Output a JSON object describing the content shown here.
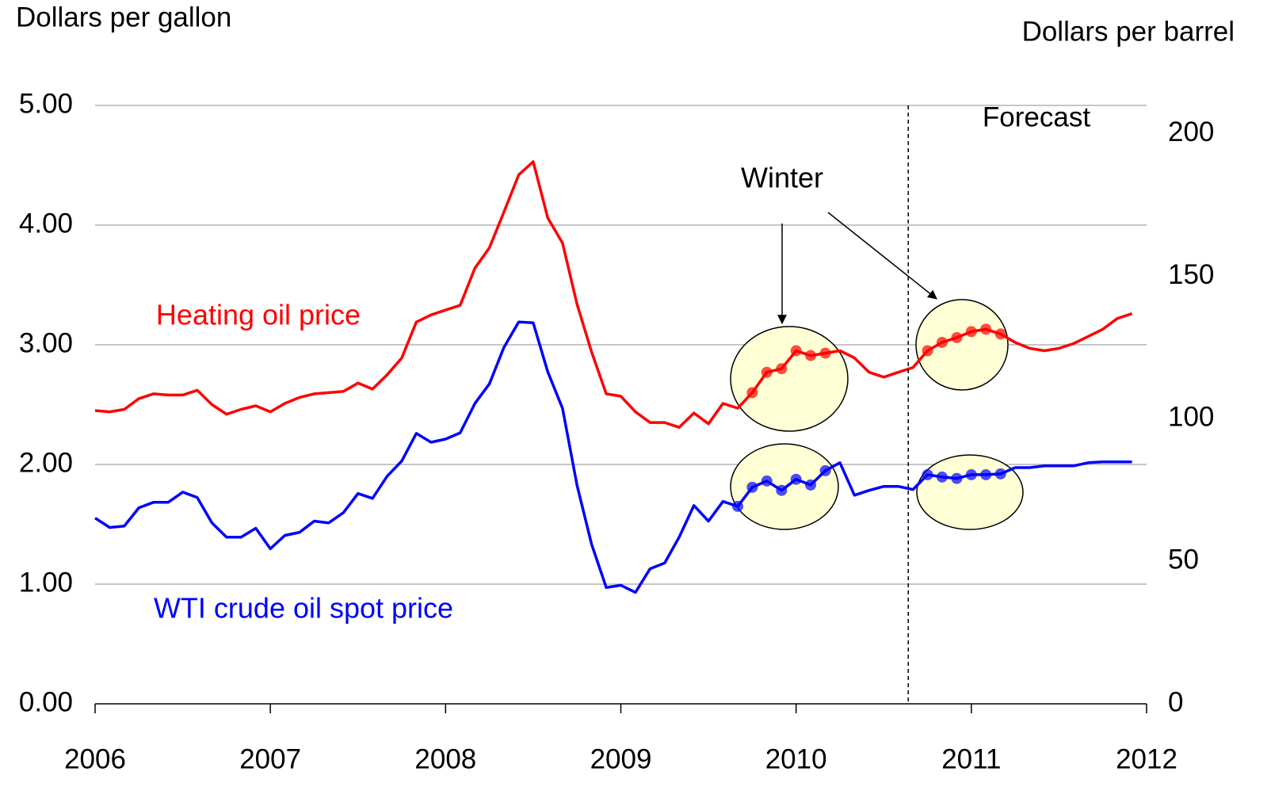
{
  "chart_data": {
    "type": "line",
    "ylabel": "Dollars per gallon",
    "y2label": "Dollars per barrel",
    "annotations": {
      "forecast": "Forecast",
      "winter": "Winter"
    },
    "forecast_start": 2010.64,
    "x": [
      2006,
      2006.083,
      2006.167,
      2006.25,
      2006.333,
      2006.417,
      2006.5,
      2006.583,
      2006.667,
      2006.75,
      2006.833,
      2006.917,
      2007,
      2007.083,
      2007.167,
      2007.25,
      2007.333,
      2007.417,
      2007.5,
      2007.583,
      2007.667,
      2007.75,
      2007.833,
      2007.917,
      2008,
      2008.083,
      2008.167,
      2008.25,
      2008.333,
      2008.417,
      2008.5,
      2008.583,
      2008.667,
      2008.75,
      2008.833,
      2008.917,
      2009,
      2009.083,
      2009.167,
      2009.25,
      2009.333,
      2009.417,
      2009.5,
      2009.583,
      2009.667,
      2009.75,
      2009.833,
      2009.917,
      2010,
      2010.083,
      2010.167,
      2010.25,
      2010.333,
      2010.417,
      2010.5,
      2010.583,
      2010.667,
      2010.75,
      2010.833,
      2010.917,
      2011,
      2011.083,
      2011.167,
      2011.25,
      2011.333,
      2011.417,
      2011.5,
      2011.583,
      2011.667,
      2011.75,
      2011.833,
      2011.917
    ],
    "series": [
      {
        "name": "Heating oil price",
        "color": "#ff0000",
        "axis": "y",
        "values": [
          2.45,
          2.44,
          2.46,
          2.55,
          2.59,
          2.58,
          2.58,
          2.62,
          2.5,
          2.42,
          2.46,
          2.49,
          2.44,
          2.51,
          2.56,
          2.59,
          2.6,
          2.61,
          2.68,
          2.63,
          2.75,
          2.89,
          3.19,
          3.25,
          3.29,
          3.33,
          3.64,
          3.81,
          4.11,
          4.42,
          4.53,
          4.06,
          3.85,
          3.34,
          2.94,
          2.59,
          2.57,
          2.44,
          2.35,
          2.35,
          2.31,
          2.43,
          2.34,
          2.51,
          2.47,
          2.6,
          2.77,
          2.8,
          2.95,
          2.91,
          2.93,
          2.95,
          2.89,
          2.77,
          2.73,
          2.77,
          2.81,
          2.95,
          3.02,
          3.06,
          3.11,
          3.13,
          3.09,
          3.02,
          2.97,
          2.95,
          2.97,
          3.01,
          3.07,
          3.13,
          3.22,
          3.26
        ]
      },
      {
        "name": "WTI crude oil spot price",
        "color": "#0000ff",
        "axis": "y2",
        "values": [
          65.2,
          61.9,
          62.4,
          68.8,
          70.7,
          70.7,
          74.3,
          72.4,
          63.5,
          58.5,
          58.5,
          61.6,
          54.4,
          59.1,
          60.2,
          64.1,
          63.5,
          67.1,
          73.8,
          72.1,
          79.9,
          85.2,
          94.9,
          91.8,
          92.9,
          95.1,
          105.4,
          112.3,
          125.1,
          134.0,
          133.7,
          116.5,
          103.7,
          76.7,
          56.0,
          40.8,
          41.6,
          39.1,
          47.4,
          49.4,
          58.5,
          69.6,
          64.1,
          71.0,
          69.3,
          76.0,
          78.2,
          74.9,
          78.8,
          76.8,
          81.8,
          84.6,
          73.2,
          74.9,
          76.3,
          76.3,
          75.2,
          80.4,
          79.6,
          79.1,
          80.4,
          80.4,
          80.7,
          82.9,
          82.9,
          83.5,
          83.5,
          83.5,
          84.6,
          84.9,
          84.9,
          84.9
        ]
      }
    ],
    "xlim": [
      2006,
      2012
    ],
    "xticks": [
      2006,
      2007,
      2008,
      2009,
      2010,
      2011,
      2012
    ],
    "ylim": [
      0,
      5
    ],
    "yticks": [
      {
        "value": 0,
        "label": "0.00"
      },
      {
        "value": 1,
        "label": "1.00"
      },
      {
        "value": 2,
        "label": "2.00"
      },
      {
        "value": 3,
        "label": "3.00"
      },
      {
        "value": 4,
        "label": "4.00"
      },
      {
        "value": 5,
        "label": "5.00"
      }
    ],
    "y2lim": [
      0,
      210
    ],
    "y2ticks": [
      0,
      50,
      100,
      150,
      200
    ],
    "grid": true
  }
}
